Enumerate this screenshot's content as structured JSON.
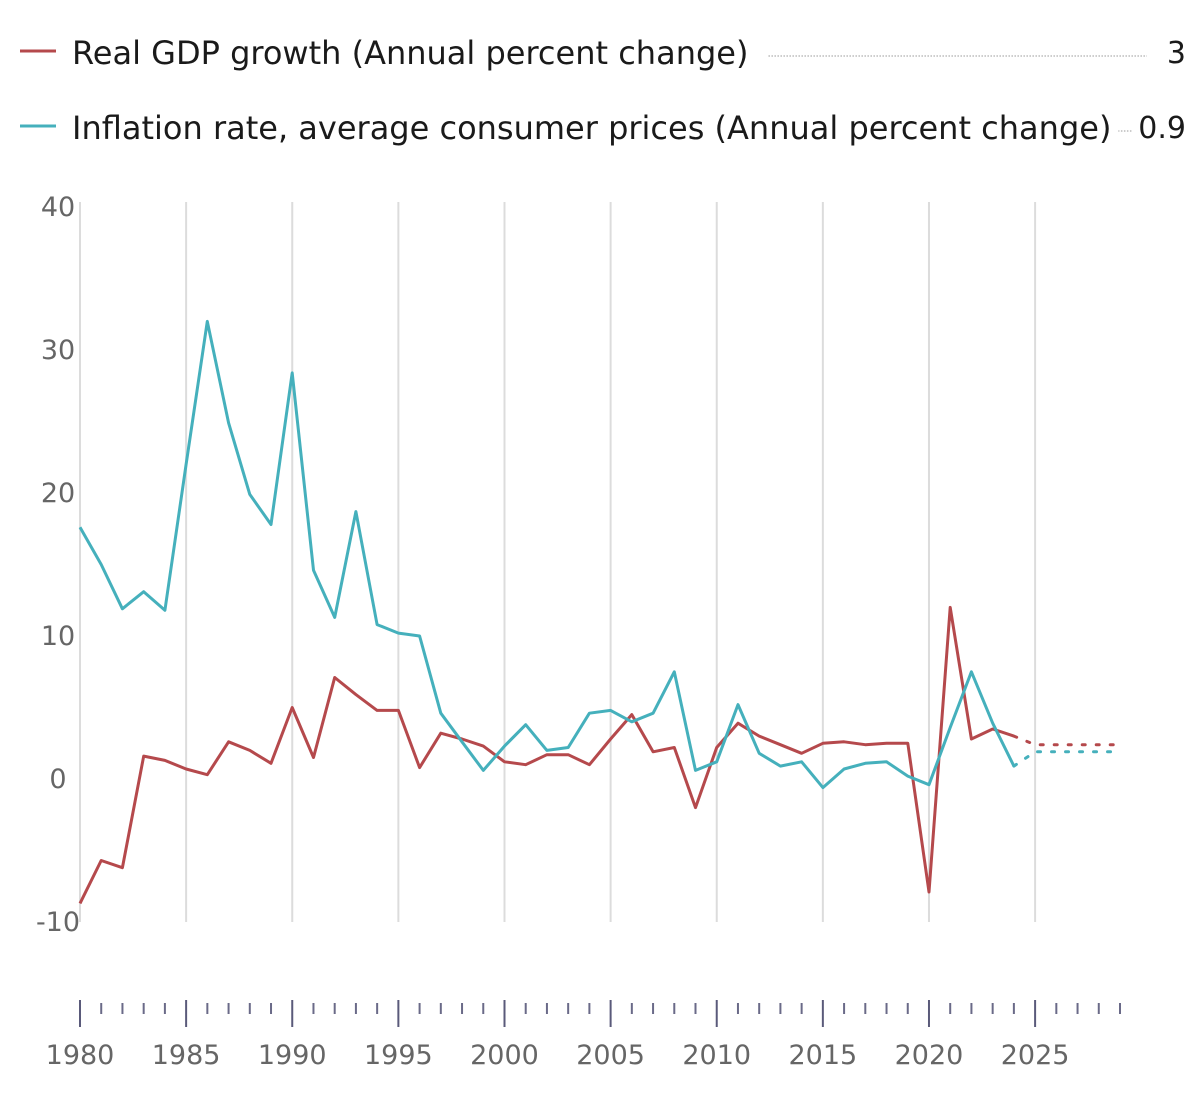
{
  "chart_data": {
    "type": "line",
    "xlim": [
      1980,
      2029
    ],
    "ylim": [
      -10,
      40
    ],
    "y_ticks": [
      -10,
      0,
      10,
      20,
      30,
      40
    ],
    "x_ticks": [
      1980,
      1985,
      1990,
      1995,
      2000,
      2005,
      2010,
      2015,
      2020,
      2025
    ],
    "grid": "vertical",
    "legend_position": "top",
    "series": [
      {
        "name": "Real GDP growth (Annual percent change)",
        "value_label": "3",
        "color": "#b5494c",
        "actual": {
          "x": [
            1980,
            1981,
            1982,
            1983,
            1984,
            1985,
            1986,
            1987,
            1988,
            1989,
            1990,
            1991,
            1992,
            1993,
            1994,
            1995,
            1996,
            1997,
            1998,
            1999,
            2000,
            2001,
            2002,
            2003,
            2004,
            2005,
            2006,
            2007,
            2008,
            2009,
            2010,
            2011,
            2012,
            2013,
            2014,
            2015,
            2016,
            2017,
            2018,
            2019,
            2020,
            2021,
            2022,
            2023,
            2024
          ],
          "y": [
            -8.7,
            -5.7,
            -6.2,
            1.6,
            1.3,
            0.7,
            0.3,
            2.6,
            2.0,
            1.1,
            5.0,
            1.5,
            7.1,
            5.9,
            4.8,
            4.8,
            0.8,
            3.2,
            2.8,
            2.3,
            1.2,
            1.0,
            1.7,
            1.7,
            1.0,
            2.8,
            4.5,
            1.9,
            2.2,
            -2.0,
            2.2,
            3.9,
            3.0,
            2.4,
            1.8,
            2.5,
            2.6,
            2.4,
            2.5,
            2.5,
            -7.9,
            12.0,
            2.8,
            3.5,
            3.0
          ]
        },
        "projection": {
          "x": [
            2024,
            2025,
            2026,
            2027,
            2028,
            2029
          ],
          "y": [
            3.0,
            2.4,
            2.4,
            2.4,
            2.4,
            2.4
          ]
        }
      },
      {
        "name": "Inflation rate, average consumer prices (Annual percent change)",
        "value_label": "0.9",
        "color": "#45b0bc",
        "actual": {
          "x": [
            1980,
            1981,
            1982,
            1983,
            1984,
            1985,
            1986,
            1987,
            1988,
            1989,
            1990,
            1991,
            1992,
            1993,
            1994,
            1995,
            1996,
            1997,
            1998,
            1999,
            2000,
            2001,
            2002,
            2003,
            2004,
            2005,
            2006,
            2007,
            2008,
            2009,
            2010,
            2011,
            2012,
            2013,
            2014,
            2015,
            2016,
            2017,
            2018,
            2019,
            2020,
            2021,
            2022,
            2023,
            2024
          ],
          "y": [
            17.6,
            15.0,
            11.9,
            13.1,
            11.8,
            22.0,
            32.0,
            24.9,
            19.9,
            17.8,
            28.4,
            14.6,
            11.3,
            18.7,
            10.8,
            10.2,
            10.0,
            4.6,
            2.6,
            0.6,
            2.3,
            3.8,
            2.0,
            2.2,
            4.6,
            4.8,
            4.0,
            4.6,
            7.5,
            0.6,
            1.2,
            5.2,
            1.8,
            0.9,
            1.2,
            -0.6,
            0.7,
            1.1,
            1.2,
            0.2,
            -0.4,
            3.6,
            7.5,
            3.9,
            0.9
          ]
        },
        "projection": {
          "x": [
            2024,
            2025,
            2026,
            2027,
            2028,
            2029
          ],
          "y": [
            0.9,
            1.9,
            1.9,
            1.9,
            1.9,
            1.9
          ]
        }
      }
    ]
  }
}
